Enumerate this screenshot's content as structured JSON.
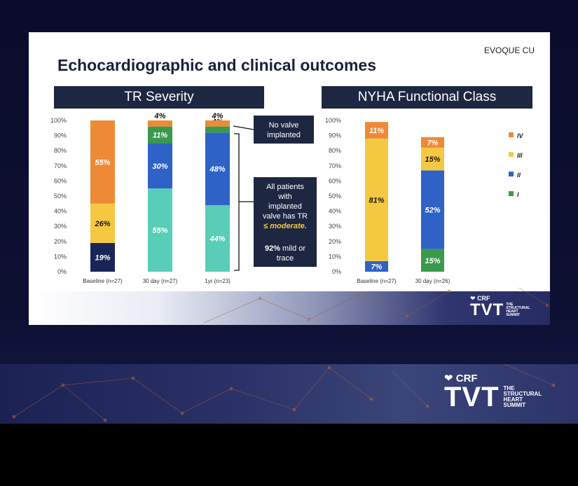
{
  "slide": {
    "tag": "EVOQUE CU",
    "title": "Echocardiographic and clinical outcomes"
  },
  "logo": {
    "crf": "CRF",
    "tvt": "TVT",
    "subtitle_lines": [
      "THE",
      "STRUCTURAL",
      "HEART",
      "SUMMIT"
    ]
  },
  "colors": {
    "orange": "#ee8a36",
    "yellow": "#f5c842",
    "blue": "#2f62c6",
    "green": "#3a9a4c",
    "teal": "#59cdb7",
    "navy": "#1a2557",
    "header_bg": "#1d2742"
  },
  "chart_data": [
    {
      "type": "bar",
      "stacked": true,
      "title": "TR Severity",
      "categories": [
        "Baseline (n=27)",
        "30 day (n=27)",
        "1yr (n=23)"
      ],
      "ylim": [
        0,
        100
      ],
      "yticks": [
        "0%",
        "10%",
        "20%",
        "30%",
        "40%",
        "50%",
        "60%",
        "70%",
        "80%",
        "90%",
        "100%"
      ],
      "series": [
        {
          "key": "navy",
          "values": [
            19,
            0,
            0
          ],
          "labels": [
            "19%",
            "",
            ""
          ]
        },
        {
          "key": "teal",
          "values": [
            0,
            55,
            44
          ],
          "labels": [
            "",
            "55%",
            "44%"
          ]
        },
        {
          "key": "yellow",
          "values": [
            26,
            0,
            0
          ],
          "labels": [
            "26%",
            "",
            ""
          ]
        },
        {
          "key": "blue",
          "values": [
            0,
            30,
            48
          ],
          "labels": [
            "",
            "30%",
            "48%"
          ]
        },
        {
          "key": "green",
          "values": [
            0,
            11,
            4
          ],
          "labels": [
            "",
            "11%",
            "4%"
          ]
        },
        {
          "key": "orange",
          "values": [
            55,
            4,
            4
          ],
          "labels": [
            "55%",
            "4%",
            "4%"
          ]
        }
      ],
      "annotations": {
        "no_valve": [
          "No valve",
          "implanted"
        ],
        "implanted": {
          "lines": [
            "All patients",
            "with",
            "implanted",
            "valve has TR"
          ],
          "emphasis": "≤ moderate.",
          "stat_value": "92%",
          "stat_text_1": "mild or",
          "stat_text_2": "trace"
        }
      }
    },
    {
      "type": "bar",
      "stacked": true,
      "title": "NYHA Functional Class",
      "categories": [
        "Baseline (n=27)",
        "30 day (n=26)"
      ],
      "ylim": [
        0,
        100
      ],
      "yticks": [
        "0%",
        "10%",
        "20%",
        "30%",
        "40%",
        "50%",
        "60%",
        "70%",
        "80%",
        "90%",
        "100%"
      ],
      "series": [
        {
          "name": "I",
          "key": "green",
          "values": [
            0,
            15
          ],
          "labels": [
            "",
            "15%"
          ]
        },
        {
          "name": "II",
          "key": "blue",
          "values": [
            7,
            52
          ],
          "labels": [
            "7%",
            "52%"
          ]
        },
        {
          "name": "III",
          "key": "yellow",
          "values": [
            81,
            15
          ],
          "labels": [
            "81%",
            "15%"
          ]
        },
        {
          "name": "IV",
          "key": "orange",
          "values": [
            11,
            7
          ],
          "labels": [
            "11%",
            "7%"
          ]
        }
      ],
      "legend": [
        "IV",
        "III",
        "II",
        "I"
      ]
    }
  ]
}
